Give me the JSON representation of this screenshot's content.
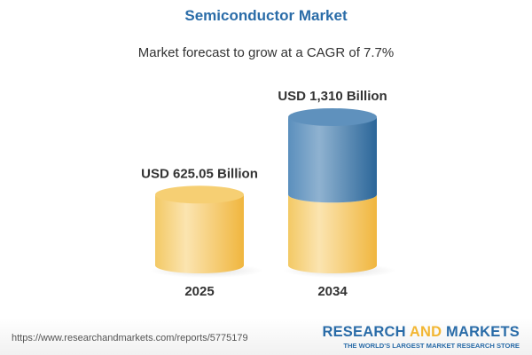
{
  "chart_data": {
    "type": "bar",
    "style": "3d-cylinder",
    "title": "Semiconductor Market",
    "subtitle": "Market forecast to grow at a CAGR of 7.7%",
    "categories": [
      "2025",
      "2034"
    ],
    "values": [
      625.05,
      1310
    ],
    "data_labels": [
      "USD 625.05 Billion",
      "USD 1,310 Billion"
    ],
    "unit": "USD Billion",
    "grid": false,
    "colors": {
      "base": "#f2c45a",
      "growth": "#3f7cb0",
      "title": "#2a6ca8"
    }
  },
  "footer": {
    "url": "https://www.researchandmarkets.com/reports/5775179",
    "logo": {
      "part1": "RESEARCH ",
      "part2": "AND",
      "part3": " MARKETS",
      "tagline": "THE WORLD'S LARGEST MARKET RESEARCH STORE"
    }
  }
}
